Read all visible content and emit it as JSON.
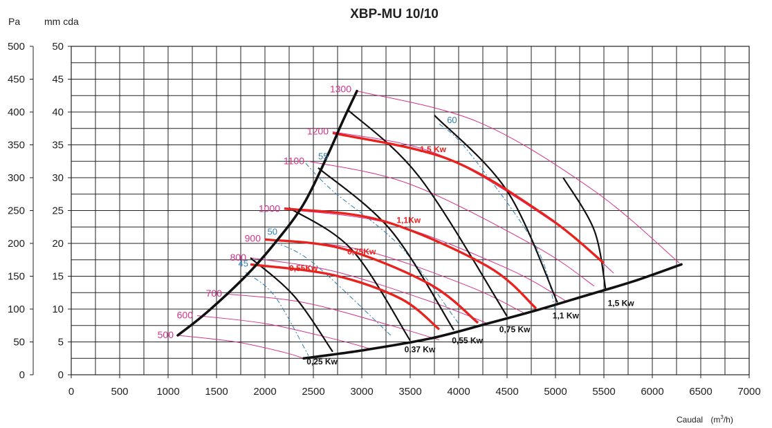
{
  "chart_data": {
    "type": "line",
    "title": "XBP-MU 10/10",
    "y_unit_left": "Pa",
    "y_unit_right": "mm cda",
    "xlabel": "Caudal",
    "xlabel_unit": "(m",
    "xlabel_unit_sup": "3",
    "xlabel_unit_end": "/h)",
    "xlim": [
      0,
      7000
    ],
    "ylim_pa": [
      0,
      500
    ],
    "ylim_mm": [
      0,
      50
    ],
    "x_ticks": [
      "0",
      "500",
      "1000",
      "1500",
      "2000",
      "2500",
      "3000",
      "3500",
      "4000",
      "4500",
      "5000",
      "5500",
      "6000",
      "6500",
      "7000"
    ],
    "y_ticks_pa": [
      "0",
      "50",
      "100",
      "150",
      "200",
      "250",
      "300",
      "350",
      "400",
      "450",
      "500"
    ],
    "y_ticks_mm": [
      "0",
      "5",
      "10",
      "15",
      "20",
      "25",
      "30",
      "35",
      "40",
      "45",
      "50"
    ],
    "grid": true,
    "rpm_curves": [
      {
        "label": "500",
        "points": [
          [
            1100,
            6
          ],
          [
            1700,
            5
          ],
          [
            2200,
            3.4
          ],
          [
            2400,
            2.5
          ]
        ]
      },
      {
        "label": "600",
        "points": [
          [
            1300,
            9
          ],
          [
            2000,
            7.8
          ],
          [
            2700,
            5.5
          ],
          [
            3100,
            3.9
          ]
        ]
      },
      {
        "label": "700",
        "points": [
          [
            1600,
            12.3
          ],
          [
            2400,
            11
          ],
          [
            3300,
            7.5
          ],
          [
            3800,
            5.3
          ]
        ]
      },
      {
        "label": "800",
        "points": [
          [
            1850,
            17.8
          ],
          [
            2700,
            15.8
          ],
          [
            3700,
            11.2
          ],
          [
            4300,
            7.8
          ]
        ]
      },
      {
        "label": "900",
        "points": [
          [
            2000,
            20.7
          ],
          [
            3000,
            19
          ],
          [
            4100,
            13.5
          ],
          [
            4700,
            9.2
          ]
        ]
      },
      {
        "label": "1000",
        "points": [
          [
            2200,
            25.2
          ],
          [
            3300,
            23
          ],
          [
            4500,
            16.2
          ],
          [
            5100,
            11.3
          ]
        ]
      },
      {
        "label": "1100",
        "points": [
          [
            2450,
            32.5
          ],
          [
            3500,
            29
          ],
          [
            4800,
            19.5
          ],
          [
            5400,
            13.5
          ]
        ]
      },
      {
        "label": "1200",
        "points": [
          [
            2700,
            37
          ],
          [
            3800,
            33.5
          ],
          [
            5000,
            23
          ],
          [
            5600,
            15.5
          ]
        ]
      },
      {
        "label": "1300",
        "points": [
          [
            2950,
            43.2
          ],
          [
            4200,
            38.5
          ],
          [
            5400,
            28
          ],
          [
            6280,
            17
          ]
        ]
      }
    ],
    "system_curve_upper": [
      [
        1100,
        6
      ],
      [
        1400,
        9.5
      ],
      [
        1800,
        15
      ],
      [
        2100,
        20
      ],
      [
        2400,
        26
      ],
      [
        2650,
        33.5
      ],
      [
        2800,
        38.5
      ],
      [
        2950,
        43.2
      ]
    ],
    "system_curve_lower": [
      [
        2400,
        2.5
      ],
      [
        3000,
        3.7
      ],
      [
        3700,
        5.5
      ],
      [
        4300,
        7.8
      ],
      [
        4800,
        9.8
      ],
      [
        5300,
        12
      ],
      [
        5800,
        14.2
      ],
      [
        6300,
        16.8
      ]
    ],
    "efficiency_lines": [
      {
        "label": "45",
        "points": [
          [
            1800,
            15.6
          ],
          [
            2100,
            12
          ],
          [
            2450,
            2.9
          ]
        ]
      },
      {
        "label": "50",
        "points": [
          [
            2100,
            20.2
          ],
          [
            2500,
            17
          ],
          [
            3300,
            6
          ]
        ]
      },
      {
        "label": "55",
        "points": [
          [
            2420,
            32.2
          ],
          [
            2700,
            28
          ],
          [
            3400,
            19.5
          ],
          [
            4000,
            7.8
          ]
        ]
      },
      {
        "label": "60",
        "points": [
          [
            3800,
            38.2
          ],
          [
            4100,
            34
          ],
          [
            4800,
            19.5
          ],
          [
            5000,
            9.6
          ]
        ]
      }
    ],
    "power_lines_red": [
      {
        "label": "0,55Kw",
        "points": [
          [
            1850,
            16.8
          ],
          [
            2700,
            15.2
          ],
          [
            3400,
            11.6
          ],
          [
            3800,
            6.9
          ]
        ]
      },
      {
        "label": "0,75Kw",
        "points": [
          [
            2000,
            20.6
          ],
          [
            2800,
            19.2
          ],
          [
            3700,
            13.8
          ],
          [
            4200,
            7.9
          ]
        ]
      },
      {
        "label": "1,1Kw",
        "points": [
          [
            2200,
            25.3
          ],
          [
            3200,
            23.5
          ],
          [
            4300,
            16.5
          ],
          [
            4800,
            10.1
          ]
        ]
      },
      {
        "label": "1,5 Kw",
        "points": [
          [
            2700,
            36.8
          ],
          [
            3900,
            32.8
          ],
          [
            4900,
            24.2
          ],
          [
            5500,
            17
          ]
        ]
      }
    ],
    "power_lines_black": [
      {
        "label": "0,25 Kw",
        "points": [
          [
            1850,
            17.8
          ],
          [
            2300,
            12
          ],
          [
            2700,
            3.5
          ]
        ]
      },
      {
        "label": "0,37 Kw",
        "points": [
          [
            2250,
            25.4
          ],
          [
            2900,
            19
          ],
          [
            3500,
            5.2
          ]
        ]
      },
      {
        "label": "0,55 Kw",
        "points": [
          [
            2550,
            31.5
          ],
          [
            3300,
            22
          ],
          [
            3950,
            6.8
          ]
        ]
      },
      {
        "label": "0,75 Kw",
        "points": [
          [
            2850,
            40.4
          ],
          [
            3600,
            30
          ],
          [
            4500,
            8.9
          ]
        ]
      },
      {
        "label": "1,1 Kw",
        "points": [
          [
            3750,
            39.5
          ],
          [
            4500,
            28
          ],
          [
            5020,
            11
          ]
        ]
      },
      {
        "label": "1,5 Kw",
        "points": [
          [
            5080,
            30
          ],
          [
            5400,
            22
          ],
          [
            5520,
            12.8
          ]
        ]
      }
    ],
    "colors": {
      "rpm": "#d6338a",
      "efficiency": "#2f7fb5",
      "power_red": "#e8231f",
      "power_black": "#111111",
      "system": "#111111",
      "grid": "#222222"
    }
  }
}
